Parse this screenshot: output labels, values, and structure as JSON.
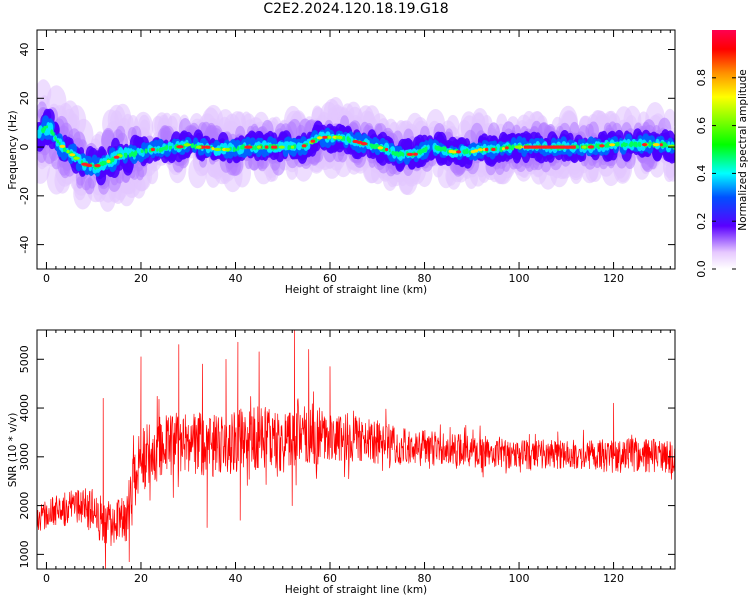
{
  "title": "C2E2.2024.120.18.19.G18",
  "chart_data": [
    {
      "type": "heatmap",
      "xlabel": "Height of straight line (km)",
      "ylabel": "Frequency (Hz)",
      "xlim": [
        -2,
        133
      ],
      "ylim": [
        -50,
        48
      ],
      "xticks": [
        0,
        20,
        40,
        60,
        80,
        100,
        120
      ],
      "yticks": [
        -40,
        -20,
        0,
        20,
        40
      ],
      "ridge": {
        "x": [
          -1,
          0,
          1,
          2,
          4,
          6,
          8,
          10,
          12,
          14,
          16,
          18,
          20,
          22,
          24,
          26,
          28,
          30,
          32,
          34,
          36,
          38,
          40,
          42,
          44,
          46,
          48,
          50,
          52,
          54,
          56,
          58,
          60,
          62,
          64,
          66,
          68,
          70,
          72,
          74,
          76,
          78,
          80,
          82,
          84,
          86,
          88,
          90,
          92,
          94,
          96,
          98,
          100,
          105,
          110,
          115,
          120,
          125,
          128,
          130,
          133
        ],
        "y": [
          6,
          8,
          7,
          3,
          -1,
          -4,
          -7,
          -8,
          -7,
          -5,
          -3,
          -3,
          -2,
          -1,
          -1,
          0,
          0,
          1,
          0,
          0,
          -1,
          -1,
          -1,
          0,
          0,
          0,
          0,
          0,
          0,
          0,
          2,
          4,
          4,
          4,
          3,
          2,
          1,
          0,
          -1,
          -3,
          -3,
          -3,
          -1,
          0,
          -1,
          -2,
          -2,
          -2,
          -1,
          -1,
          -1,
          0,
          0,
          0,
          0,
          0,
          1,
          1,
          1,
          1,
          0
        ]
      },
      "colorbar": {
        "label": "Normalized spectral amplitude",
        "range": [
          0,
          1
        ],
        "ticks": [
          "0.0",
          "0.2",
          "0.4",
          "0.6",
          "0.8"
        ]
      }
    },
    {
      "type": "line",
      "xlabel": "Height of straight line (km)",
      "ylabel": "SNR (10 * v/v)",
      "xlim": [
        -2,
        133
      ],
      "ylim": [
        700,
        5600
      ],
      "xticks": [
        0,
        20,
        40,
        60,
        80,
        100,
        120
      ],
      "yticks": [
        1000,
        2000,
        3000,
        4000,
        5000
      ],
      "series": [
        {
          "color": "#ff0000",
          "envelope": {
            "x": [
              -2,
              0,
              5,
              10,
              12,
              15,
              17,
              18,
              20,
              22,
              25,
              30,
              35,
              40,
              45,
              50,
              53,
              55,
              60,
              65,
              70,
              75,
              80,
              85,
              90,
              95,
              100,
              105,
              110,
              115,
              120,
              125,
              130,
              133
            ],
            "mean": [
              1700,
              1850,
              2000,
              1900,
              1600,
              1700,
              1700,
              2400,
              2900,
              3100,
              3200,
              3300,
              3200,
              3300,
              3400,
              3300,
              3500,
              3500,
              3400,
              3400,
              3300,
              3200,
              3200,
              3150,
              3100,
              3100,
              3050,
              3050,
              3050,
              3050,
              3000,
              3050,
              3000,
              3000
            ],
            "spread": [
              300,
              300,
              350,
              450,
              550,
              450,
              450,
              600,
              650,
              650,
              650,
              650,
              650,
              650,
              650,
              650,
              700,
              650,
              550,
              500,
              450,
              400,
              380,
              350,
              330,
              320,
              300,
              300,
              300,
              300,
              350,
              350,
              350,
              350
            ]
          },
          "peaks": [
            {
              "x": 12,
              "y": 4200
            },
            {
              "x": 20,
              "y": 5050
            },
            {
              "x": 28,
              "y": 5300
            },
            {
              "x": 33,
              "y": 4900
            },
            {
              "x": 38,
              "y": 5000
            },
            {
              "x": 40.5,
              "y": 5350
            },
            {
              "x": 45,
              "y": 5150
            },
            {
              "x": 52.5,
              "y": 5650
            },
            {
              "x": 55.5,
              "y": 5200
            },
            {
              "x": 60,
              "y": 4850
            },
            {
              "x": 120,
              "y": 4100
            },
            {
              "x": 12.5,
              "y": 620
            },
            {
              "x": 17.5,
              "y": 850
            },
            {
              "x": 34,
              "y": 1550
            },
            {
              "x": 41,
              "y": 1700
            },
            {
              "x": 52,
              "y": 2000
            }
          ]
        }
      ]
    }
  ]
}
